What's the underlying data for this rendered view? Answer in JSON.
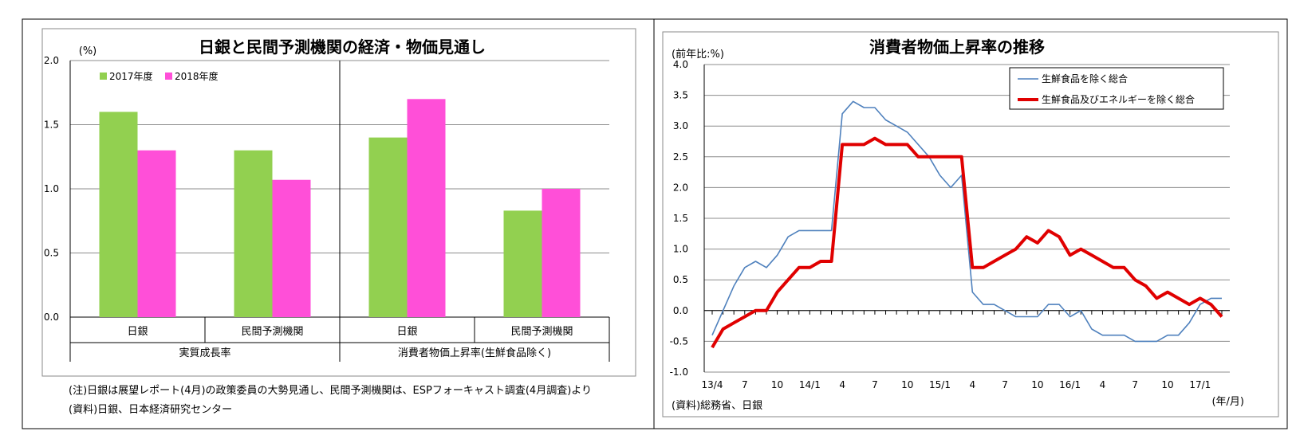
{
  "left_panel": {
    "note": "(注)日銀は展望レポート(4月)の政策委員の大勢見通し、民間予測機関は、ESPフォーキャスト調査(4月調査)より",
    "source": "(資料)日銀、日本経済研究センター"
  },
  "right_panel": {
    "source": "(資料)総務省、日銀",
    "xunit": "(年/月)"
  },
  "colors": {
    "green": "#92d050",
    "magenta": "#ff4fd8",
    "blue_line": "#4f81bd",
    "red_line": "#e00000"
  },
  "chart_data": [
    {
      "type": "bar",
      "title": "日銀と民間予測機関の経済・物価見通し",
      "ylabel": "(%)",
      "ylim": [
        0,
        2.0
      ],
      "yticks": [
        "0.0",
        "0.5",
        "1.0",
        "1.5",
        "2.0"
      ],
      "categories": [
        "日銀",
        "民間予測機関",
        "日銀",
        "民間予測機関"
      ],
      "groups": [
        "実質成長率",
        "消費者物価上昇率(生鮮食品除く)"
      ],
      "legend_position": "top-left",
      "series": [
        {
          "name": "2017年度",
          "values": [
            1.6,
            1.3,
            1.4,
            0.83
          ]
        },
        {
          "name": "2018年度",
          "values": [
            1.3,
            1.07,
            1.7,
            1.0
          ]
        }
      ]
    },
    {
      "type": "line",
      "title": "消費者物価上昇率の推移",
      "ylabel": "(前年比:%)",
      "ylim": [
        -1.0,
        4.0
      ],
      "yticks": [
        "-1.0",
        "-0.5",
        "0.0",
        "0.5",
        "1.0",
        "1.5",
        "2.0",
        "2.5",
        "3.0",
        "3.5",
        "4.0"
      ],
      "x": [
        "13/4",
        "13/5",
        "13/6",
        "13/7",
        "13/8",
        "13/9",
        "13/10",
        "13/11",
        "13/12",
        "14/1",
        "14/2",
        "14/3",
        "14/4",
        "14/5",
        "14/6",
        "14/7",
        "14/8",
        "14/9",
        "14/10",
        "14/11",
        "14/12",
        "15/1",
        "15/2",
        "15/3",
        "15/4",
        "15/5",
        "15/6",
        "15/7",
        "15/8",
        "15/9",
        "15/10",
        "15/11",
        "15/12",
        "16/1",
        "16/2",
        "16/3",
        "16/4",
        "16/5",
        "16/6",
        "16/7",
        "16/8",
        "16/9",
        "16/10",
        "16/11",
        "16/12",
        "17/1",
        "17/2",
        "17/3"
      ],
      "xticklabels": [
        "13/4",
        "7",
        "10",
        "14/1",
        "4",
        "7",
        "10",
        "15/1",
        "4",
        "7",
        "10",
        "16/1",
        "4",
        "7",
        "10",
        "17/1"
      ],
      "legend_position": "top-right",
      "series": [
        {
          "name": "生鮮食品を除く総合",
          "values": [
            -0.4,
            0.0,
            0.4,
            0.7,
            0.8,
            0.7,
            0.9,
            1.2,
            1.3,
            1.3,
            1.3,
            1.3,
            3.2,
            3.4,
            3.3,
            3.3,
            3.1,
            3.0,
            2.9,
            2.7,
            2.5,
            2.2,
            2.0,
            2.2,
            0.3,
            0.1,
            0.1,
            0.0,
            -0.1,
            -0.1,
            -0.1,
            0.1,
            0.1,
            -0.1,
            0.0,
            -0.3,
            -0.4,
            -0.4,
            -0.4,
            -0.5,
            -0.5,
            -0.5,
            -0.4,
            -0.4,
            -0.2,
            0.1,
            0.2,
            0.2
          ]
        },
        {
          "name": "生鮮食品及びエネルギーを除く総合",
          "values": [
            -0.6,
            -0.3,
            -0.2,
            -0.1,
            0.0,
            0.0,
            0.3,
            0.5,
            0.7,
            0.7,
            0.8,
            0.8,
            2.7,
            2.7,
            2.7,
            2.8,
            2.7,
            2.7,
            2.7,
            2.5,
            2.5,
            2.5,
            2.5,
            2.5,
            0.7,
            0.7,
            0.8,
            0.9,
            1.0,
            1.2,
            1.1,
            1.3,
            1.2,
            0.9,
            1.0,
            0.9,
            0.8,
            0.7,
            0.7,
            0.5,
            0.4,
            0.2,
            0.3,
            0.2,
            0.1,
            0.2,
            0.1,
            -0.1
          ]
        }
      ]
    }
  ]
}
